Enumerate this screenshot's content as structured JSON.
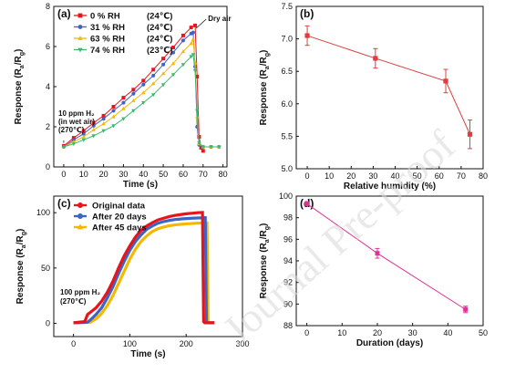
{
  "watermark": "Journal Pre-proof",
  "chart_data": [
    {
      "panel": "(a)",
      "type": "line",
      "xlabel": "Time (s)",
      "ylabel": "Response (Ra/Rg)",
      "xlim": [
        -5,
        82
      ],
      "ylim": [
        0,
        8
      ],
      "xticks": [
        0,
        10,
        20,
        30,
        40,
        50,
        60,
        70,
        80
      ],
      "yticks": [
        0,
        2,
        4,
        6,
        8
      ],
      "legend_position": "top-left",
      "annotations": {
        "dry_air": "Dry air",
        "gas": [
          "10 ppm H₂",
          "(in wet air)",
          "(270℃)"
        ]
      },
      "series": [
        {
          "name": "0 % RH",
          "temp": "(24℃)",
          "color": "#e8141c",
          "marker": "square",
          "x": [
            0,
            5,
            10,
            15,
            20,
            25,
            30,
            35,
            40,
            45,
            50,
            55,
            60,
            64,
            66,
            67,
            68,
            69,
            70
          ],
          "y": [
            1.05,
            1.45,
            1.8,
            2.2,
            2.55,
            3.0,
            3.45,
            3.85,
            4.3,
            4.85,
            5.4,
            5.95,
            6.55,
            6.95,
            7.05,
            4.5,
            1.5,
            0.95,
            0.8
          ]
        },
        {
          "name": "31 % RH",
          "temp": "(24℃)",
          "color": "#3a64c8",
          "marker": "circle",
          "x": [
            0,
            5,
            10,
            15,
            20,
            25,
            30,
            35,
            40,
            45,
            50,
            55,
            60,
            64,
            65,
            66,
            67,
            68,
            70,
            74,
            78
          ],
          "y": [
            1.0,
            1.35,
            1.65,
            2.05,
            2.4,
            2.8,
            3.2,
            3.65,
            4.1,
            4.55,
            5.1,
            5.7,
            6.3,
            6.65,
            6.7,
            5.0,
            2.0,
            1.1,
            1.0,
            1.0,
            1.0
          ]
        },
        {
          "name": "63 % RH",
          "temp": "(24℃)",
          "color": "#f5b800",
          "marker": "triangle",
          "x": [
            0,
            5,
            10,
            15,
            20,
            25,
            30,
            35,
            40,
            45,
            50,
            55,
            60,
            64,
            65,
            66,
            67,
            68,
            70,
            74,
            78
          ],
          "y": [
            1.0,
            1.25,
            1.5,
            1.85,
            2.15,
            2.5,
            2.9,
            3.3,
            3.7,
            4.15,
            4.65,
            5.15,
            5.75,
            6.15,
            6.35,
            5.2,
            2.5,
            1.15,
            1.0,
            1.0,
            1.0
          ]
        },
        {
          "name": "74 % RH",
          "temp": "(23℃)",
          "color": "#3cb86e",
          "marker": "triangle-down",
          "x": [
            0,
            5,
            10,
            15,
            20,
            25,
            30,
            35,
            40,
            45,
            50,
            55,
            60,
            64,
            65,
            66,
            67,
            68,
            70,
            74,
            78
          ],
          "y": [
            1.0,
            1.15,
            1.35,
            1.55,
            1.8,
            2.05,
            2.4,
            2.8,
            3.2,
            3.6,
            4.1,
            4.6,
            5.1,
            5.5,
            5.6,
            4.8,
            2.8,
            1.2,
            1.0,
            1.0,
            1.0
          ]
        }
      ]
    },
    {
      "panel": "(b)",
      "type": "line",
      "xlabel": "Relative humidity (%)",
      "ylabel": "Response (Ra/Rg)",
      "xlim": [
        -5,
        80
      ],
      "ylim": [
        5.0,
        7.5
      ],
      "xticks": [
        0,
        10,
        20,
        30,
        40,
        50,
        60,
        70,
        80
      ],
      "xtick_labels": [
        "0",
        "10",
        "20",
        "30",
        "40",
        "50",
        "60",
        "70",
        "80"
      ],
      "yticks": [
        5.0,
        5.5,
        6.0,
        6.5,
        7.0,
        7.5
      ],
      "ytick_labels": [
        "5.0",
        "5.5",
        "6.0",
        "6.5",
        "7.0",
        "7.5"
      ],
      "series": [
        {
          "color": "#e03c3c",
          "x": [
            0,
            31,
            63,
            74
          ],
          "y": [
            7.05,
            6.7,
            6.35,
            5.53
          ],
          "err": [
            0.15,
            0.15,
            0.18,
            0.22
          ]
        }
      ]
    },
    {
      "panel": "(c)",
      "type": "line",
      "xlabel": "Time (s)",
      "ylabel": "Response (Ra/Rg)",
      "xlim": [
        -35,
        300
      ],
      "ylim": [
        -12,
        115
      ],
      "xticks": [
        0,
        100,
        200,
        300
      ],
      "yticks": [
        0,
        50,
        100
      ],
      "legend_position": "top-left",
      "annotations": {
        "gas": [
          "100 ppm H₂",
          "(270℃)"
        ]
      },
      "series": [
        {
          "name": "Original data",
          "color": "#e8141c",
          "marker": "circle",
          "x": [
            0,
            20,
            25,
            30,
            40,
            50,
            60,
            70,
            80,
            90,
            100,
            110,
            120,
            130,
            140,
            150,
            160,
            170,
            180,
            190,
            200,
            210,
            220,
            229,
            230,
            231,
            233,
            240,
            250
          ],
          "y": [
            0.5,
            1.5,
            8,
            10,
            14,
            20,
            28,
            38,
            50,
            61,
            70,
            78,
            84,
            88,
            91,
            93.5,
            95,
            96.5,
            97.5,
            98.3,
            99,
            99.5,
            100,
            100.2,
            50,
            1.5,
            0.5,
            0.5,
            0.5
          ]
        },
        {
          "name": "After 20 days",
          "color": "#3a64c8",
          "marker": "circle",
          "x": [
            0,
            25,
            30,
            40,
            50,
            60,
            70,
            80,
            90,
            100,
            110,
            120,
            130,
            140,
            150,
            160,
            170,
            180,
            190,
            200,
            210,
            220,
            230,
            234,
            235,
            236,
            238,
            245,
            250
          ],
          "y": [
            0.5,
            1,
            3,
            8,
            14,
            23,
            33,
            45,
            56,
            66,
            74,
            80,
            85,
            88,
            90.5,
            92,
            93,
            93.8,
            94.3,
            94.7,
            95,
            95.2,
            95.4,
            95.5,
            50,
            1.5,
            0.5,
            0.5,
            0.5
          ]
        },
        {
          "name": "After 45 days",
          "color": "#f5b800",
          "marker": "triangle",
          "x": [
            0,
            30,
            40,
            50,
            60,
            70,
            80,
            90,
            100,
            110,
            120,
            130,
            140,
            150,
            160,
            170,
            180,
            190,
            200,
            210,
            220,
            230,
            237,
            238,
            239,
            241,
            245,
            250
          ],
          "y": [
            0.5,
            1,
            4,
            9,
            16,
            25,
            36,
            47,
            58,
            67,
            74,
            79,
            83,
            85.5,
            87,
            88.2,
            89,
            89.5,
            89.9,
            90.2,
            90.5,
            90.7,
            90.8,
            50,
            1.5,
            0.5,
            0.5,
            0.5
          ]
        }
      ]
    },
    {
      "panel": "(d)",
      "type": "line",
      "xlabel": "Duration (days)",
      "ylabel": "Response (Ra/Rg)",
      "xlim": [
        -3,
        50
      ],
      "ylim": [
        88,
        100
      ],
      "xticks": [
        0,
        10,
        20,
        30,
        40,
        50
      ],
      "yticks": [
        88,
        90,
        92,
        94,
        96,
        98,
        100
      ],
      "series": [
        {
          "color": "#e0339a",
          "x": [
            0,
            20,
            45
          ],
          "y": [
            99.3,
            94.7,
            89.5
          ],
          "err": [
            0.12,
            0.45,
            0.3
          ]
        }
      ]
    }
  ]
}
